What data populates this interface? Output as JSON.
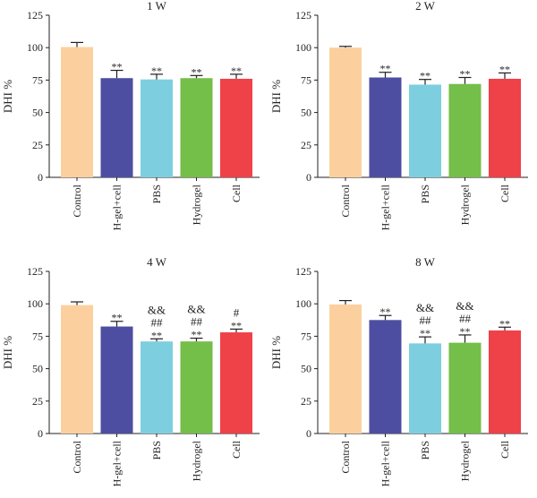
{
  "colors": {
    "Control": "#fcd09e",
    "H-gel+cell": "#4d4ea1",
    "PBS": "#7dcfe0",
    "Hydrogel": "#74be4a",
    "Cell": "#ef4148",
    "text": "#231f20"
  },
  "chart_data": [
    {
      "type": "bar",
      "title": "1 W",
      "ylabel": "DHI %",
      "ylim": [
        0,
        125
      ],
      "yticks": [
        "0",
        "25",
        "50",
        "75",
        "100",
        "125"
      ],
      "categories": [
        "Control",
        "H-gel+cell",
        "PBS",
        "Hydrogel",
        "Cell"
      ],
      "values": [
        100.5,
        76.5,
        75.5,
        76.5,
        76
      ],
      "errors": [
        3.5,
        6,
        4,
        2,
        3.5
      ],
      "annotations": [
        [],
        [
          "**"
        ],
        [
          "**"
        ],
        [
          "**"
        ],
        [
          "**"
        ]
      ]
    },
    {
      "type": "bar",
      "title": "2 W",
      "ylabel": "DHI %",
      "ylim": [
        0,
        125
      ],
      "yticks": [
        "0",
        "25",
        "50",
        "75",
        "100",
        "125"
      ],
      "categories": [
        "Control",
        "H-gel+cell",
        "PBS",
        "Hydrogel",
        "Cell"
      ],
      "values": [
        100,
        77,
        71.5,
        72,
        76
      ],
      "errors": [
        1,
        4,
        4,
        5,
        4.5
      ],
      "annotations": [
        [],
        [
          "**"
        ],
        [
          "**"
        ],
        [
          "**"
        ],
        [
          "**"
        ]
      ]
    },
    {
      "type": "bar",
      "title": "4 W",
      "ylabel": "DHI %",
      "ylim": [
        0,
        125
      ],
      "yticks": [
        "0",
        "25",
        "50",
        "75",
        "100",
        "125"
      ],
      "categories": [
        "Control",
        "H-gel+cell",
        "PBS",
        "Hydrogel",
        "Cell"
      ],
      "values": [
        99,
        82.5,
        71,
        71,
        78
      ],
      "errors": [
        2.5,
        4,
        2,
        2.5,
        2.5
      ],
      "annotations": [
        [],
        [
          "**"
        ],
        [
          "&&",
          "##",
          "**"
        ],
        [
          "&&",
          "##",
          "**"
        ],
        [
          "#",
          "**"
        ]
      ]
    },
    {
      "type": "bar",
      "title": "8 W",
      "ylabel": "DHI %",
      "ylim": [
        0,
        125
      ],
      "yticks": [
        "0",
        "25",
        "50",
        "75",
        "100",
        "125"
      ],
      "categories": [
        "Control",
        "H-gel+cell",
        "PBS",
        "Hydrogel",
        "Cell"
      ],
      "values": [
        99.5,
        87.5,
        69.5,
        70,
        79.5
      ],
      "errors": [
        3,
        3.5,
        5,
        6,
        2.5
      ],
      "annotations": [
        [],
        [
          "**"
        ],
        [
          "&&",
          "##",
          "**"
        ],
        [
          "&&",
          "##",
          "**"
        ],
        [
          "**"
        ]
      ]
    }
  ]
}
